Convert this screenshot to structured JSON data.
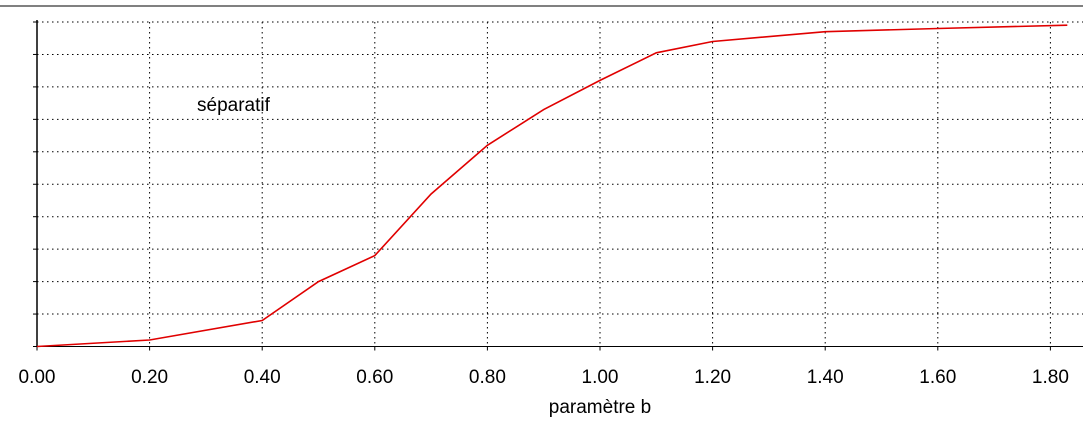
{
  "chart_data": {
    "type": "line",
    "title": "",
    "xlabel": "paramètre b",
    "ylabel": "",
    "annotation": "séparatif",
    "x_ticks": [
      "0.00",
      "0.20",
      "0.40",
      "0.60",
      "0.80",
      "1.00",
      "1.20",
      "1.40",
      "1.60",
      "1.80"
    ],
    "xlim": [
      0,
      1.83
    ],
    "ylim": [
      0,
      1
    ],
    "y_gridlines": 10,
    "grid": true,
    "grid_style": "dotted",
    "series": [
      {
        "color": "#e00000",
        "x": [
          0.0,
          0.2,
          0.4,
          0.5,
          0.6,
          0.7,
          0.8,
          0.9,
          1.0,
          1.1,
          1.2,
          1.4,
          1.6,
          1.83
        ],
        "y": [
          0.0,
          0.02,
          0.08,
          0.2,
          0.28,
          0.47,
          0.62,
          0.73,
          0.82,
          0.905,
          0.94,
          0.97,
          0.98,
          0.99
        ]
      }
    ]
  }
}
